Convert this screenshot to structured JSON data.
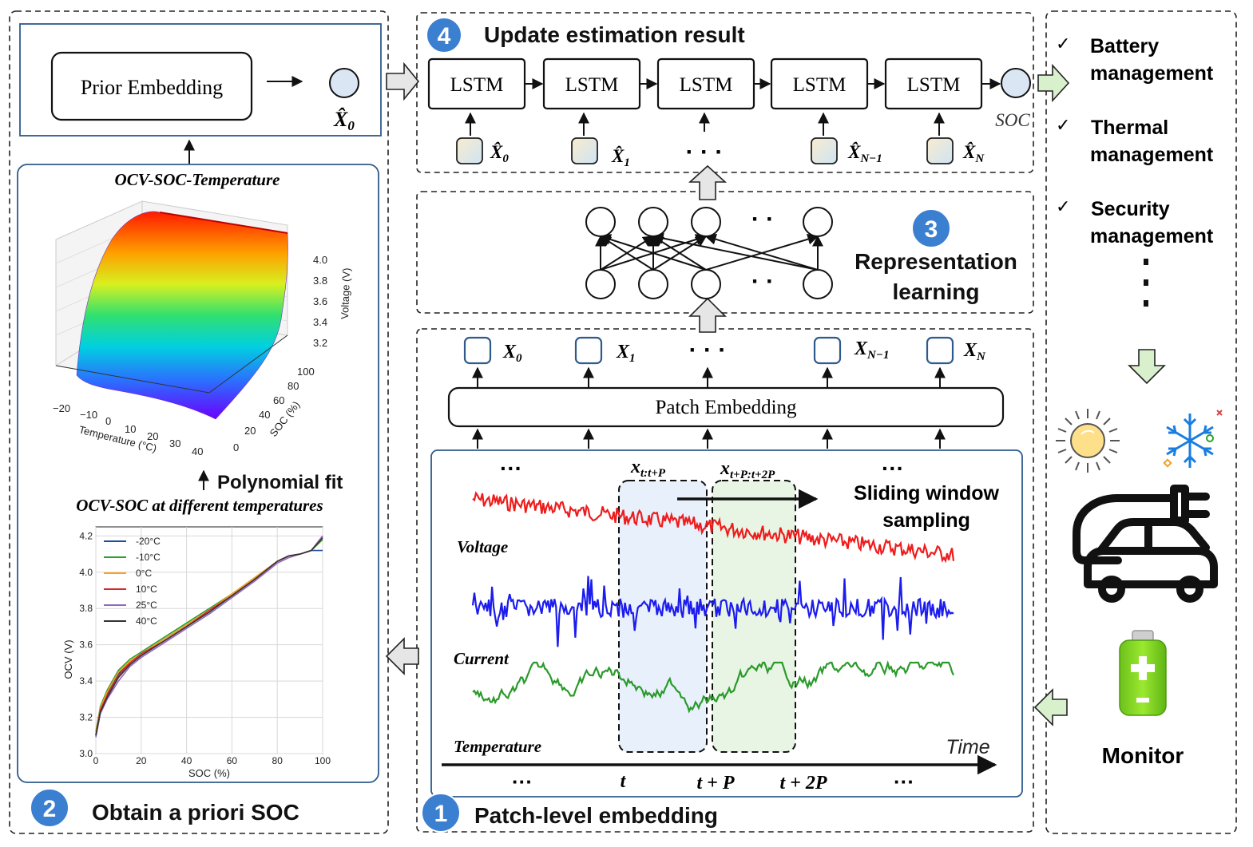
{
  "section1": {
    "badge": "1",
    "title": "Patch-level embedding"
  },
  "section2": {
    "badge": "2",
    "title": "Obtain a priori SOC"
  },
  "section3": {
    "badge": "3",
    "title_line1": "Representation",
    "title_line2": "learning"
  },
  "section4": {
    "badge": "4",
    "title": "Update estimation result"
  },
  "prior": {
    "box_label": "Prior Embedding",
    "output": "X̂",
    "output_sub": "0"
  },
  "surface": {
    "title": "OCV-SOC-Temperature",
    "z_ticks": [
      "4.0",
      "3.8",
      "3.6",
      "3.4",
      "3.2"
    ],
    "z_label": "Voltage (V)",
    "x_ticks": [
      "−20",
      "−10",
      "0",
      "10",
      "20",
      "30",
      "40"
    ],
    "x_label": "Temperature (°C)",
    "y_ticks": [
      "0",
      "20",
      "40",
      "60",
      "80",
      "100"
    ],
    "y_label": "SOC (%)"
  },
  "fit_label": "Polynomial fit",
  "chart_data": {
    "type": "line",
    "title": "OCV-SOC at different temperatures",
    "xlabel": "SOC (%)",
    "ylabel": "OCV (V)",
    "xlim": [
      0,
      100
    ],
    "ylim": [
      3.0,
      4.25
    ],
    "x_ticks": [
      "0",
      "20",
      "40",
      "60",
      "80",
      "100"
    ],
    "y_ticks": [
      "3.0",
      "3.2",
      "3.4",
      "3.6",
      "3.8",
      "4.0",
      "4.2"
    ],
    "legend_position": "top-left",
    "grid": true,
    "x": [
      0,
      2,
      5,
      10,
      15,
      20,
      30,
      40,
      50,
      60,
      70,
      80,
      85,
      90,
      95,
      100
    ],
    "series": [
      {
        "name": "-20°C",
        "color": "#1f4e9c",
        "values": [
          3.1,
          3.24,
          3.33,
          3.44,
          3.5,
          3.55,
          3.63,
          3.71,
          3.79,
          3.87,
          3.96,
          4.06,
          4.09,
          4.1,
          4.12,
          4.12
        ]
      },
      {
        "name": "-10°C",
        "color": "#2ca02c",
        "values": [
          3.12,
          3.26,
          3.35,
          3.46,
          3.52,
          3.56,
          3.64,
          3.72,
          3.8,
          3.88,
          3.97,
          4.06,
          4.09,
          4.1,
          4.12,
          4.18
        ]
      },
      {
        "name": "0°C",
        "color": "#ff9f1a",
        "values": [
          3.11,
          3.25,
          3.34,
          3.45,
          3.51,
          3.55,
          3.63,
          3.71,
          3.79,
          3.88,
          3.97,
          4.06,
          4.09,
          4.1,
          4.12,
          4.19
        ]
      },
      {
        "name": "10°C",
        "color": "#d62728",
        "values": [
          3.1,
          3.24,
          3.32,
          3.43,
          3.5,
          3.55,
          3.62,
          3.7,
          3.79,
          3.87,
          3.96,
          4.06,
          4.09,
          4.1,
          4.12,
          4.2
        ]
      },
      {
        "name": "25°C",
        "color": "#9467bd",
        "values": [
          3.09,
          3.22,
          3.3,
          3.4,
          3.48,
          3.53,
          3.61,
          3.69,
          3.77,
          3.86,
          3.95,
          4.05,
          4.08,
          4.1,
          4.12,
          4.2
        ]
      },
      {
        "name": "40°C",
        "color": "#333333",
        "values": [
          3.1,
          3.23,
          3.31,
          3.42,
          3.49,
          3.54,
          3.62,
          3.7,
          3.78,
          3.87,
          3.96,
          4.06,
          4.09,
          4.1,
          4.12,
          4.19
        ]
      }
    ]
  },
  "lstm": {
    "cells": [
      "LSTM",
      "LSTM",
      "LSTM",
      "LSTM",
      "LSTM"
    ],
    "inputs": [
      {
        "label": "X̂",
        "sub": "0"
      },
      {
        "label": "X̂",
        "sub": "1"
      },
      {
        "label": "X̂",
        "sub": "N−1"
      },
      {
        "label": "X̂",
        "sub": "N"
      }
    ],
    "ellipsis": "· · ·",
    "output": "SOC"
  },
  "rep": {
    "dots_top": "· ·",
    "dots_bottom": "· ·"
  },
  "patch": {
    "tokens": [
      {
        "label": "X",
        "sub": "0"
      },
      {
        "label": "X",
        "sub": "1"
      },
      {
        "label": "X",
        "sub": "N−1"
      },
      {
        "label": "X",
        "sub": "N"
      }
    ],
    "ellipsis": "· · ·",
    "embedding_label": "Patch Embedding"
  },
  "signals": {
    "window1": "x",
    "window1_sub": "t:t+P",
    "window2": "x",
    "window2_sub": "t+P:t+2P",
    "ellipsis": "···",
    "sliding_line1": "Sliding window",
    "sliding_line2": "sampling",
    "voltage": "Voltage",
    "current": "Current",
    "temperature": "Temperature",
    "time": "Time",
    "ticks": [
      "···",
      "t",
      "t + P",
      "t + 2P",
      "···"
    ]
  },
  "colors": {
    "voltage": "#ee1c1c",
    "current": "#1c1cee",
    "temperature": "#2a9a2a",
    "badge": "#3b7fd0",
    "window1": "#e8f0fb",
    "window2": "#e8f5e4"
  },
  "management": {
    "items": [
      {
        "line1": "Battery",
        "line2": "management"
      },
      {
        "line1": "Thermal",
        "line2": "management"
      },
      {
        "line1": "Security",
        "line2": "management"
      }
    ],
    "check": "✓",
    "monitor": "Monitor"
  }
}
